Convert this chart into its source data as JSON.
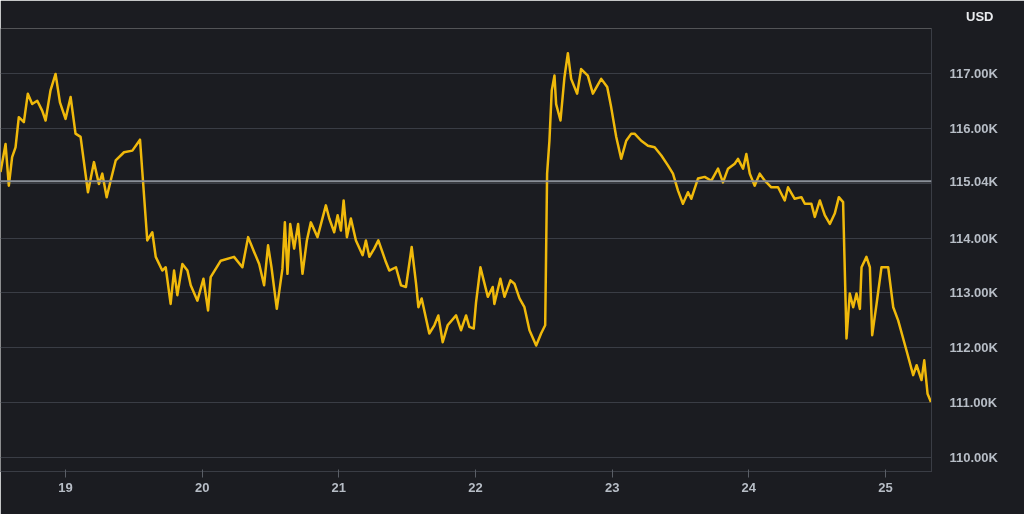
{
  "chart_data": {
    "type": "line",
    "ylabel": "USD",
    "x": [
      18.524,
      18.561,
      18.585,
      18.609,
      18.634,
      18.658,
      18.695,
      18.724,
      18.756,
      18.793,
      18.829,
      18.854,
      18.89,
      18.927,
      18.959,
      19.0,
      19.037,
      19.073,
      19.11,
      19.164,
      19.208,
      19.244,
      19.269,
      19.301,
      19.33,
      19.367,
      19.428,
      19.489,
      19.545,
      19.562,
      19.598,
      19.635,
      19.66,
      19.708,
      19.733,
      19.769,
      19.794,
      19.818,
      19.855,
      19.892,
      19.916,
      19.965,
      20.009,
      20.043,
      20.062,
      20.136,
      20.233,
      20.294,
      20.336,
      20.38,
      20.417,
      20.453,
      20.482,
      20.507,
      20.546,
      20.587,
      20.605,
      20.624,
      20.644,
      20.673,
      20.702,
      20.734,
      20.766,
      20.795,
      20.844,
      20.905,
      20.93,
      20.966,
      20.991,
      21.015,
      21.035,
      21.059,
      21.088,
      21.125,
      21.174,
      21.198,
      21.223,
      21.259,
      21.289,
      21.345,
      21.369,
      21.418,
      21.455,
      21.491,
      21.533,
      21.565,
      21.582,
      21.606,
      21.662,
      21.699,
      21.728,
      21.76,
      21.796,
      21.858,
      21.894,
      21.931,
      21.955,
      21.987,
      22.004,
      22.036,
      22.06,
      22.09,
      22.126,
      22.138,
      22.182,
      22.212,
      22.256,
      22.285,
      22.322,
      22.358,
      22.395,
      22.444,
      22.48,
      22.51,
      22.524,
      22.541,
      22.558,
      22.578,
      22.59,
      22.622,
      22.651,
      22.676,
      22.7,
      22.744,
      22.773,
      22.822,
      22.859,
      22.92,
      22.964,
      22.993,
      23.03,
      23.066,
      23.103,
      23.14,
      23.164,
      23.213,
      23.262,
      23.311,
      23.36,
      23.408,
      23.445,
      23.482,
      23.518,
      23.555,
      23.579,
      23.628,
      23.677,
      23.726,
      23.775,
      23.811,
      23.848,
      23.897,
      23.921,
      23.958,
      23.982,
      24.007,
      24.043,
      24.08,
      24.117,
      24.165,
      24.214,
      24.263,
      24.287,
      24.336,
      24.385,
      24.41,
      24.458,
      24.483,
      24.52,
      24.556,
      24.593,
      24.629,
      24.659,
      24.69,
      24.715,
      24.739,
      24.764,
      24.788,
      24.813,
      24.825,
      24.861,
      24.886,
      24.903,
      24.935,
      24.971,
      25.02,
      25.057,
      25.093,
      25.154,
      25.203,
      25.228,
      25.264,
      25.284,
      25.308,
      25.333
    ],
    "series": [
      {
        "color": "#f0b90b",
        "values": [
          115.21,
          115.72,
          114.96,
          115.48,
          115.66,
          116.21,
          116.12,
          116.64,
          116.45,
          116.51,
          116.33,
          116.15,
          116.7,
          117.0,
          116.48,
          116.18,
          116.58,
          115.91,
          115.85,
          114.84,
          115.39,
          114.99,
          115.18,
          114.75,
          115.05,
          115.42,
          115.57,
          115.6,
          115.8,
          115.21,
          113.96,
          114.11,
          113.66,
          113.41,
          113.47,
          112.8,
          113.41,
          112.96,
          113.53,
          113.41,
          113.14,
          112.86,
          113.26,
          112.68,
          113.29,
          113.59,
          113.66,
          113.47,
          114.02,
          113.75,
          113.53,
          113.14,
          113.87,
          113.47,
          112.71,
          113.44,
          114.29,
          113.35,
          114.26,
          113.81,
          114.26,
          113.35,
          113.96,
          114.29,
          114.02,
          114.6,
          114.36,
          114.11,
          114.42,
          114.14,
          114.69,
          114.02,
          114.36,
          113.96,
          113.69,
          113.96,
          113.66,
          113.81,
          113.96,
          113.56,
          113.41,
          113.47,
          113.14,
          113.11,
          113.84,
          113.17,
          112.74,
          112.9,
          112.26,
          112.41,
          112.59,
          112.1,
          112.41,
          112.59,
          112.32,
          112.59,
          112.38,
          112.35,
          112.83,
          113.47,
          113.23,
          112.93,
          113.11,
          112.8,
          113.26,
          112.93,
          113.23,
          113.17,
          112.9,
          112.74,
          112.32,
          112.04,
          112.26,
          112.41,
          115.18,
          115.78,
          116.7,
          116.97,
          116.45,
          116.15,
          116.94,
          117.38,
          116.91,
          116.64,
          117.09,
          116.97,
          116.64,
          116.91,
          116.76,
          116.39,
          115.85,
          115.45,
          115.78,
          115.91,
          115.91,
          115.78,
          115.69,
          115.66,
          115.51,
          115.33,
          115.18,
          114.87,
          114.63,
          114.84,
          114.72,
          115.09,
          115.12,
          115.05,
          115.27,
          115.02,
          115.27,
          115.36,
          115.45,
          115.27,
          115.54,
          115.18,
          114.96,
          115.18,
          115.05,
          114.93,
          114.93,
          114.69,
          114.93,
          114.72,
          114.75,
          114.63,
          114.63,
          114.39,
          114.69,
          114.42,
          114.26,
          114.45,
          114.75,
          114.66,
          112.17,
          112.99,
          112.74,
          112.99,
          112.71,
          113.47,
          113.66,
          113.47,
          112.23,
          112.8,
          113.47,
          113.47,
          112.74,
          112.5,
          111.95,
          111.5,
          111.68,
          111.41,
          111.77,
          111.16,
          111.01
        ]
      }
    ],
    "xlim": [
      18.524,
      25.337
    ],
    "xticks": [
      19,
      20,
      21,
      22,
      23,
      24,
      25
    ],
    "ylim": [
      109.74,
      117.83
    ],
    "yticks": [
      {
        "value": 110,
        "label": "110.00K"
      },
      {
        "value": 111,
        "label": "111.00K"
      },
      {
        "value": 112,
        "label": "112.00K"
      },
      {
        "value": 113,
        "label": "113.00K"
      },
      {
        "value": 114,
        "label": "114.00K"
      },
      {
        "value": 115,
        "label": null
      },
      {
        "value": 116,
        "label": "116.00K"
      },
      {
        "value": 117,
        "label": "117.00K"
      }
    ],
    "ref_lines": [
      {
        "axis": "y",
        "value": 115.04,
        "label": "115.04K",
        "color": "#8a8f98"
      }
    ],
    "grid": "y"
  }
}
